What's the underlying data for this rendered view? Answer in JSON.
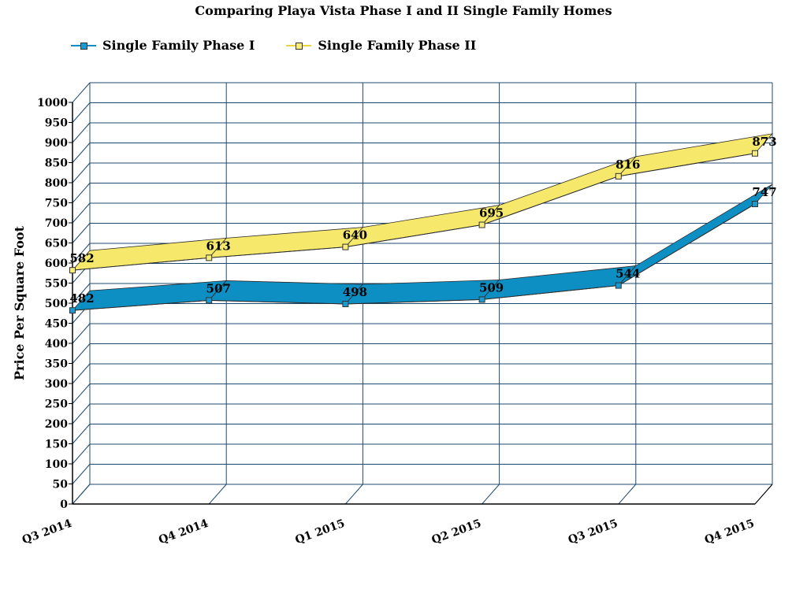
{
  "title": "Comparing Playa Vista Phase I and II Single Family Homes",
  "chart_data": {
    "type": "line",
    "title": "Comparing Playa Vista Phase I and II Single Family Homes",
    "xlabel": "",
    "ylabel": "Price Per Square Foot",
    "categories": [
      "Q3 2014",
      "Q4 2014",
      "Q1 2015",
      "Q2 2015",
      "Q3 2015",
      "Q4 2015"
    ],
    "ylim": [
      0,
      1000
    ],
    "ytick_step": 50,
    "grid": true,
    "legend_position": "top-left",
    "series": [
      {
        "name": "Single Family Phase I",
        "values": [
          482,
          507,
          498,
          509,
          544,
          747
        ],
        "color": "#0e8fc4",
        "marker_color": "#1a9ad0"
      },
      {
        "name": "Single Family Phase II",
        "values": [
          582,
          613,
          640,
          695,
          816,
          873
        ],
        "color": "#f5e86a",
        "marker_color": "#f7ec7c"
      }
    ]
  }
}
